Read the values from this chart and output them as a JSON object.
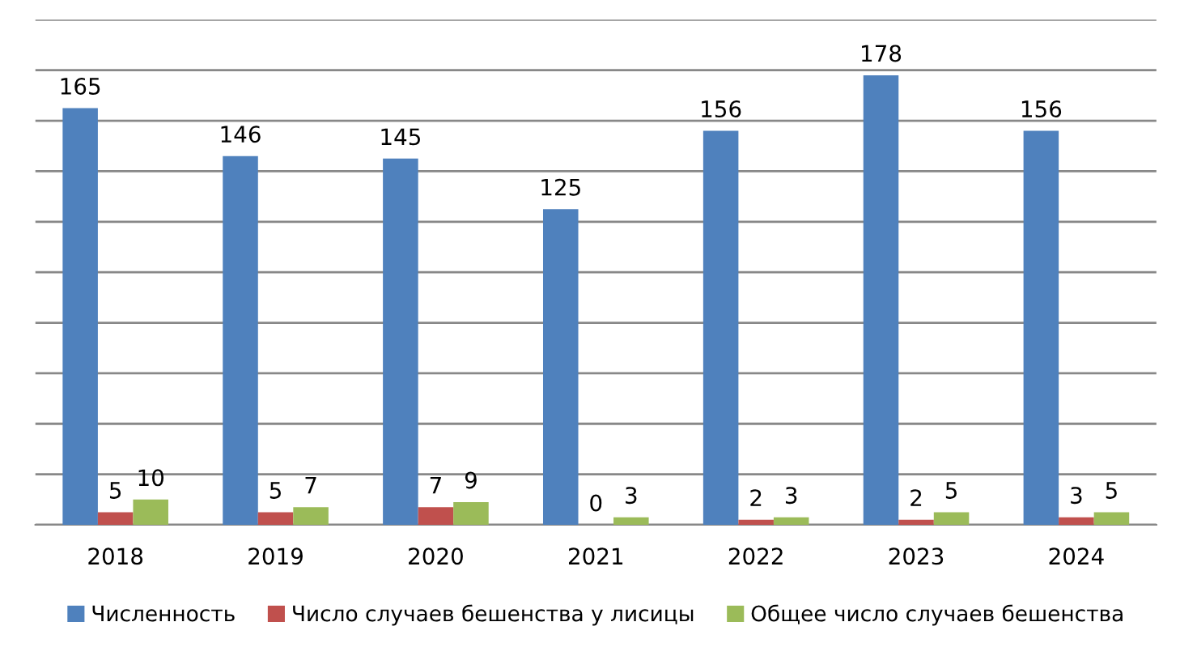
{
  "chart_data": {
    "type": "bar",
    "categories": [
      "2018",
      "2019",
      "2020",
      "2021",
      "2022",
      "2023",
      "2024"
    ],
    "series": [
      {
        "name": "Численность",
        "color": "#4f81bd",
        "values": [
          165,
          146,
          145,
          125,
          156,
          178,
          156
        ]
      },
      {
        "name": "Число случаев бешенства у лисицы",
        "color": "#c0504d",
        "values": [
          5,
          5,
          7,
          0,
          2,
          2,
          3
        ]
      },
      {
        "name": "Общее число случаев бешенства",
        "color": "#9bbb59",
        "values": [
          10,
          7,
          9,
          3,
          3,
          5,
          5
        ]
      }
    ],
    "ylim": [
      0,
      200
    ],
    "yticks": [
      {
        "value": 0,
        "label": null
      },
      {
        "value": 20,
        "label": null
      },
      {
        "value": 40,
        "label": null
      },
      {
        "value": 60,
        "label": null
      },
      {
        "value": 80,
        "label": null
      },
      {
        "value": 100,
        "label": null
      },
      {
        "value": 120,
        "label": null
      },
      {
        "value": 140,
        "label": null
      },
      {
        "value": 160,
        "label": null
      },
      {
        "value": 180,
        "label": null
      },
      {
        "value": 200,
        "label": null
      }
    ],
    "tick_labels": "x",
    "grid": "y",
    "data_labels": true,
    "legend": "bottom"
  }
}
